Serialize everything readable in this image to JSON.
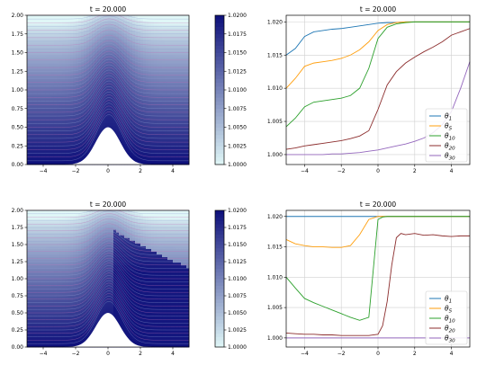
{
  "chart_data": [
    {
      "type": "heatmap",
      "title": "t = 20.000",
      "xlim": [
        -5,
        5
      ],
      "ylim": [
        0,
        2
      ],
      "x_ticks": [
        "−4",
        "−2",
        "0",
        "2",
        "4"
      ],
      "y_ticks": [
        "0.00",
        "0.25",
        "0.50",
        "0.75",
        "1.00",
        "1.25",
        "1.50",
        "1.75",
        "2.00"
      ],
      "colorbar": {
        "range": [
          1.0,
          1.02
        ],
        "ticks": [
          "1.0000",
          "1.0025",
          "1.0050",
          "1.0075",
          "1.0100",
          "1.0125",
          "1.0150",
          "1.0175",
          "1.0200"
        ],
        "colors": [
          "#e0f7f7",
          "#0d0f7a"
        ]
      },
      "topography": {
        "type": "gaussian",
        "center": 0,
        "height": 0.5,
        "width": 0.75
      }
    },
    {
      "type": "line",
      "title": "t = 20.000",
      "xlim": [
        -5,
        5
      ],
      "ylim": [
        0.9985,
        1.021
      ],
      "x_ticks": [
        "−4",
        "−2",
        "0",
        "2",
        "4"
      ],
      "y_ticks": [
        "1.000",
        "1.005",
        "1.010",
        "1.015",
        "1.020"
      ],
      "grid": true,
      "legend": "bottom-right",
      "x": [
        -5,
        -4.5,
        -4,
        -3.5,
        -3,
        -2.5,
        -2,
        -1.5,
        -1,
        -0.5,
        0,
        0.5,
        1,
        1.5,
        2,
        2.5,
        3,
        3.5,
        4,
        4.5,
        5
      ],
      "series": [
        {
          "name": "θ",
          "sub": "1",
          "color": "#1f77b4",
          "values": [
            1.015,
            1.016,
            1.0178,
            1.0185,
            1.0187,
            1.0189,
            1.019,
            1.0192,
            1.0194,
            1.0196,
            1.0198,
            1.0199,
            1.0199,
            1.02,
            1.02,
            1.02,
            1.02,
            1.02,
            1.02,
            1.02,
            1.02
          ]
        },
        {
          "name": "θ",
          "sub": "5",
          "color": "#ff9f0e",
          "values": [
            1.01,
            1.0115,
            1.0133,
            1.0138,
            1.014,
            1.0142,
            1.0145,
            1.015,
            1.0158,
            1.017,
            1.0187,
            1.0196,
            1.0199,
            1.02,
            1.02,
            1.02,
            1.02,
            1.02,
            1.02,
            1.02,
            1.02
          ]
        },
        {
          "name": "θ",
          "sub": "10",
          "color": "#2ca02c",
          "values": [
            1.0042,
            1.0055,
            1.0072,
            1.0079,
            1.0081,
            1.0083,
            1.0085,
            1.0089,
            1.01,
            1.013,
            1.0175,
            1.0192,
            1.0197,
            1.0199,
            1.02,
            1.02,
            1.02,
            1.02,
            1.02,
            1.02,
            1.02
          ]
        },
        {
          "name": "θ",
          "sub": "20",
          "color": "#8c2d2d",
          "values": [
            1.0008,
            1.001,
            1.0013,
            1.0015,
            1.0017,
            1.0019,
            1.0021,
            1.0024,
            1.0028,
            1.0036,
            1.0068,
            1.0105,
            1.0125,
            1.0138,
            1.0147,
            1.0155,
            1.0162,
            1.017,
            1.018,
            1.0185,
            1.019
          ]
        },
        {
          "name": "θ",
          "sub": "30",
          "color": "#9467bd",
          "values": [
            1.0,
            1.0,
            1.0,
            1.0,
            1.0,
            1.0001,
            1.0001,
            1.0002,
            1.0003,
            1.0005,
            1.0007,
            1.001,
            1.0013,
            1.0016,
            1.002,
            1.0025,
            1.0033,
            1.0045,
            1.0065,
            1.01,
            1.014
          ]
        }
      ]
    },
    {
      "type": "heatmap",
      "title": "t = 20.000",
      "xlim": [
        -5,
        5
      ],
      "ylim": [
        0,
        2
      ],
      "x_ticks": [
        "−4",
        "−2",
        "0",
        "2",
        "4"
      ],
      "y_ticks": [
        "0.00",
        "0.25",
        "0.50",
        "0.75",
        "1.00",
        "1.25",
        "1.50",
        "1.75",
        "2.00"
      ],
      "colorbar": {
        "range": [
          1.0,
          1.02
        ],
        "ticks": [
          "1.0000",
          "1.0025",
          "1.0050",
          "1.0075",
          "1.0100",
          "1.0125",
          "1.0150",
          "1.0175",
          "1.0200"
        ],
        "colors": [
          "#e0f7f7",
          "#0d0f7a"
        ]
      },
      "topography": {
        "type": "gaussian",
        "center": 0,
        "height": 0.5,
        "width": 0.75
      }
    },
    {
      "type": "line",
      "title": "t = 20.000",
      "xlim": [
        -5,
        5
      ],
      "ylim": [
        0.9985,
        1.021
      ],
      "x_ticks": [
        "−4",
        "−2",
        "0",
        "2",
        "4"
      ],
      "y_ticks": [
        "1.000",
        "1.005",
        "1.010",
        "1.015",
        "1.020"
      ],
      "grid": true,
      "legend": "bottom-right",
      "x": [
        -5,
        -4.5,
        -4,
        -3.5,
        -3,
        -2.5,
        -2,
        -1.5,
        -1,
        -0.5,
        0,
        0.25,
        0.5,
        0.75,
        1,
        1.25,
        1.5,
        2,
        2.5,
        3,
        3.5,
        4,
        4.5,
        5
      ],
      "series": [
        {
          "name": "θ",
          "sub": "1",
          "color": "#1f77b4",
          "values": [
            1.02,
            1.02,
            1.02,
            1.02,
            1.02,
            1.02,
            1.02,
            1.02,
            1.02,
            1.02,
            1.02,
            1.02,
            1.02,
            1.02,
            1.02,
            1.02,
            1.02,
            1.02,
            1.02,
            1.02,
            1.02,
            1.02,
            1.02,
            1.02
          ]
        },
        {
          "name": "θ",
          "sub": "5",
          "color": "#ff9f0e",
          "values": [
            1.0162,
            1.0155,
            1.0152,
            1.015,
            1.015,
            1.0149,
            1.0149,
            1.0152,
            1.017,
            1.0195,
            1.02,
            1.02,
            1.02,
            1.02,
            1.02,
            1.02,
            1.02,
            1.02,
            1.02,
            1.02,
            1.02,
            1.02,
            1.02,
            1.02
          ]
        },
        {
          "name": "θ",
          "sub": "10",
          "color": "#2ca02c",
          "values": [
            1.01,
            1.0082,
            1.0065,
            1.0058,
            1.0052,
            1.0046,
            1.004,
            1.0034,
            1.0029,
            1.0034,
            1.0195,
            1.0199,
            1.02,
            1.02,
            1.02,
            1.02,
            1.02,
            1.02,
            1.02,
            1.02,
            1.02,
            1.02,
            1.02,
            1.02
          ]
        },
        {
          "name": "θ",
          "sub": "20",
          "color": "#8c2d2d",
          "values": [
            1.0008,
            1.0007,
            1.0006,
            1.0006,
            1.0005,
            1.0005,
            1.0004,
            1.0004,
            1.0004,
            1.0004,
            1.0006,
            1.002,
            1.006,
            1.012,
            1.0165,
            1.0172,
            1.017,
            1.0172,
            1.0169,
            1.017,
            1.0168,
            1.0167,
            1.0168,
            1.0168
          ]
        },
        {
          "name": "θ",
          "sub": "30",
          "color": "#9467bd",
          "values": [
            1.0,
            1.0,
            1.0,
            1.0,
            1.0,
            1.0,
            1.0,
            1.0,
            1.0,
            1.0,
            1.0,
            1.0,
            1.0,
            1.0,
            1.0,
            1.0,
            1.0,
            1.0,
            1.0,
            1.0,
            1.0,
            1.0,
            1.0,
            1.0
          ]
        }
      ]
    }
  ]
}
